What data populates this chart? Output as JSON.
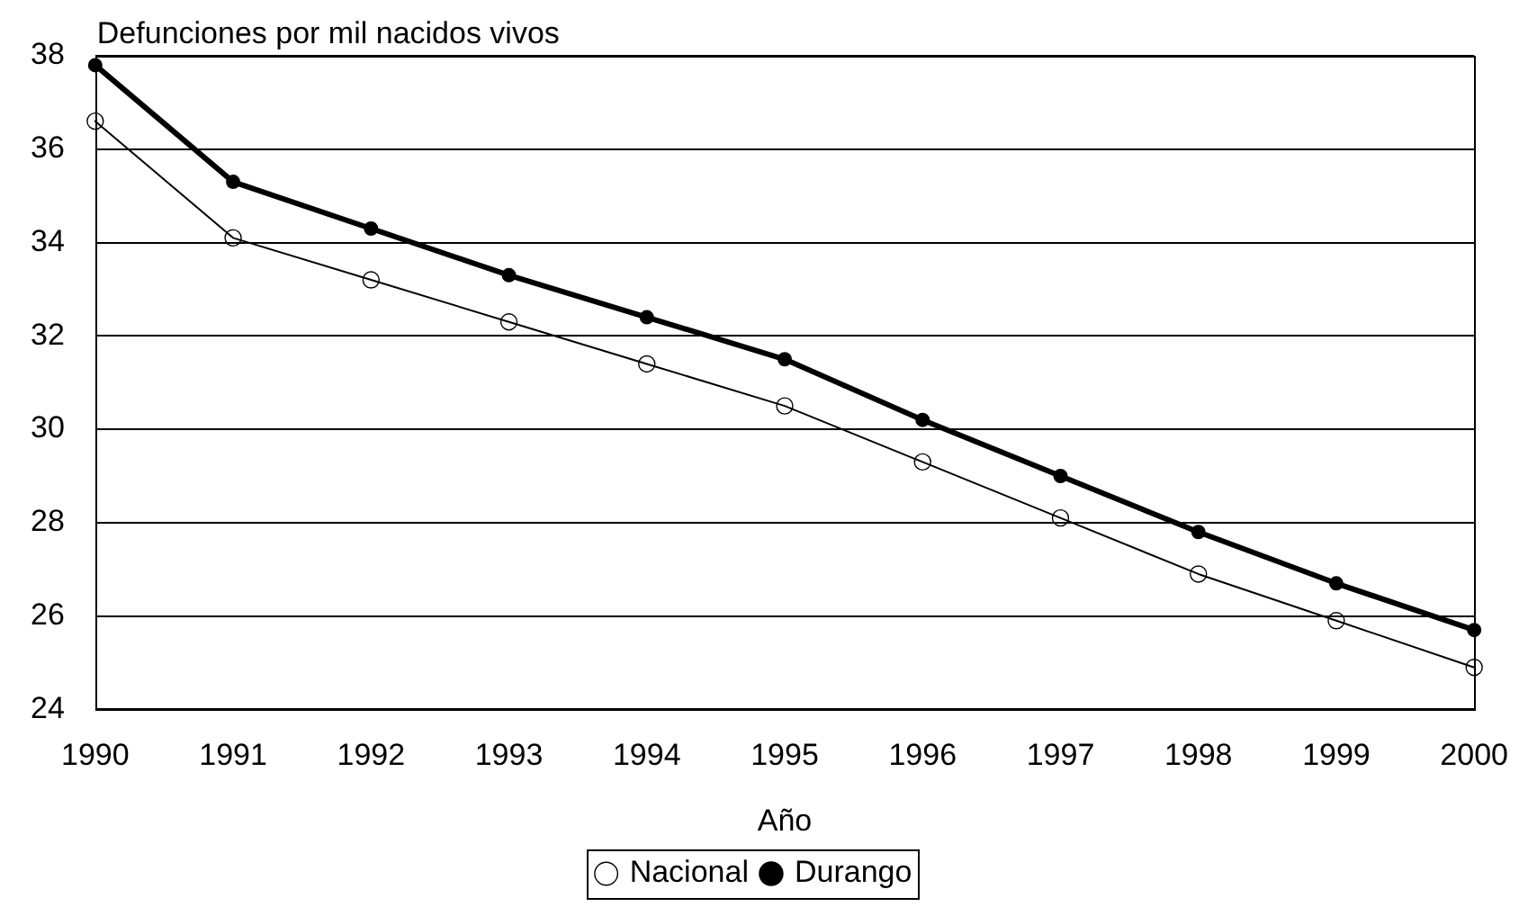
{
  "chart_data": {
    "type": "line",
    "ylabel": "Defunciones por mil nacidos vivos",
    "xlabel": "Año",
    "x": [
      1990,
      1991,
      1992,
      1993,
      1994,
      1995,
      1996,
      1997,
      1998,
      1999,
      2000
    ],
    "xlim": [
      1990,
      2000
    ],
    "xticks": [
      1990,
      1991,
      1992,
      1993,
      1994,
      1995,
      1996,
      1997,
      1998,
      1999,
      2000
    ],
    "ylim": [
      24,
      38
    ],
    "yticks": [
      24,
      26,
      28,
      30,
      32,
      34,
      36,
      38
    ],
    "series": [
      {
        "name": "Nacional",
        "color": "#000000",
        "values": [
          36.6,
          34.1,
          33.2,
          32.3,
          31.4,
          30.5,
          29.3,
          28.1,
          26.9,
          25.9,
          24.9
        ]
      },
      {
        "name": "Durango",
        "color": "#000000",
        "values": [
          37.8,
          35.3,
          34.3,
          33.3,
          32.4,
          31.5,
          30.2,
          29.0,
          27.8,
          26.7,
          25.7
        ]
      }
    ],
    "grid": "y",
    "legend": "bottom",
    "marker": "circle",
    "line_style": "solid"
  }
}
